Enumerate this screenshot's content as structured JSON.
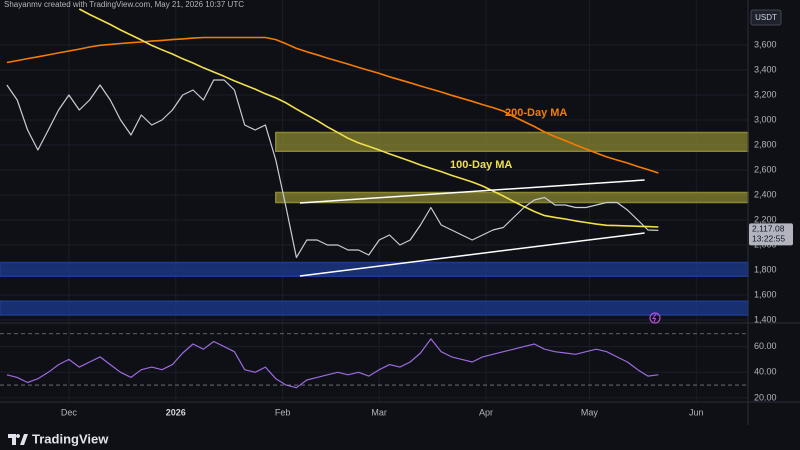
{
  "header": {
    "credit": "Shayanmv created with TradingView.com, May 21, 2026 10:37 UTC",
    "currency": "USDT"
  },
  "footer": {
    "logo": "TradingView"
  },
  "chart_data": [
    {
      "type": "line",
      "x": [
        "2025-11-13",
        "2025-11-16",
        "2025-11-19",
        "2025-11-22",
        "2025-11-25",
        "2025-11-28",
        "2025-12-01",
        "2025-12-04",
        "2025-12-07",
        "2025-12-10",
        "2025-12-13",
        "2025-12-16",
        "2025-12-19",
        "2025-12-22",
        "2025-12-25",
        "2025-12-28",
        "2025-12-31",
        "2026-01-03",
        "2026-01-06",
        "2026-01-09",
        "2026-01-12",
        "2026-01-15",
        "2026-01-18",
        "2026-01-21",
        "2026-01-24",
        "2026-01-27",
        "2026-01-30",
        "2026-02-02",
        "2026-02-05",
        "2026-02-08",
        "2026-02-11",
        "2026-02-14",
        "2026-02-17",
        "2026-02-20",
        "2026-02-23",
        "2026-02-26",
        "2026-03-01",
        "2026-03-04",
        "2026-03-07",
        "2026-03-10",
        "2026-03-13",
        "2026-03-16",
        "2026-03-19",
        "2026-03-22",
        "2026-03-25",
        "2026-03-28",
        "2026-03-31",
        "2026-04-03",
        "2026-04-06",
        "2026-04-09",
        "2026-04-12",
        "2026-04-15",
        "2026-04-18",
        "2026-04-21",
        "2026-04-24",
        "2026-04-27",
        "2026-04-30",
        "2026-05-03",
        "2026-05-06",
        "2026-05-09",
        "2026-05-12",
        "2026-05-15",
        "2026-05-18",
        "2026-05-21"
      ],
      "series": [
        {
          "color": "#c8ccd6",
          "values": [
            3280,
            3160,
            2920,
            2760,
            2920,
            3080,
            3200,
            3080,
            3160,
            3280,
            3160,
            3000,
            2880,
            3040,
            2960,
            3000,
            3080,
            3200,
            3240,
            3160,
            3320,
            3320,
            3240,
            2960,
            2920,
            2960,
            2680,
            2300,
            1900,
            2040,
            2040,
            2000,
            2000,
            1960,
            1960,
            1920,
            2040,
            2080,
            2000,
            2040,
            2160,
            2300,
            2160,
            2120,
            2080,
            2040,
            2080,
            2120,
            2140,
            2220,
            2300,
            2360,
            2380,
            2320,
            2320,
            2300,
            2300,
            2320,
            2340,
            2340,
            2280,
            2200,
            2120,
            2117.08
          ]
        },
        {
          "name": "200-Day MA",
          "color": "#f57c00",
          "values": [
            3460,
            3475,
            3491,
            3506,
            3521,
            3537,
            3552,
            3567,
            3584,
            3598,
            3605,
            3612,
            3618,
            3624,
            3631,
            3637,
            3643,
            3649,
            3655,
            3660,
            3660,
            3660,
            3660,
            3660,
            3660,
            3660,
            3643,
            3610,
            3573,
            3546,
            3522,
            3495,
            3471,
            3447,
            3421,
            3397,
            3373,
            3346,
            3322,
            3298,
            3272,
            3248,
            3224,
            3198,
            3174,
            3150,
            3123,
            3099,
            3072,
            3028,
            2988,
            2948,
            2904,
            2867,
            2835,
            2800,
            2768,
            2736,
            2705,
            2680,
            2656,
            2628,
            2603,
            2576
          ]
        },
        {
          "name": "100-Day MA",
          "color": "#f0e04a",
          "values": [
            null,
            null,
            null,
            null,
            null,
            null,
            null,
            3888,
            3844,
            3804,
            3764,
            3720,
            3680,
            3640,
            3597,
            3562,
            3528,
            3490,
            3456,
            3418,
            3384,
            3350,
            3313,
            3280,
            3247,
            3210,
            3177,
            3137,
            3087,
            3041,
            2995,
            2945,
            2899,
            2854,
            2817,
            2789,
            2760,
            2729,
            2700,
            2671,
            2640,
            2613,
            2587,
            2557,
            2531,
            2504,
            2472,
            2432,
            2392,
            2348,
            2308,
            2268,
            2235,
            2221,
            2208,
            2193,
            2180,
            2167,
            2158,
            2155,
            2153,
            2150,
            2147,
            2144
          ]
        }
      ],
      "zones": [
        {
          "high": 2900,
          "low": 2750,
          "from": "2026-01-30",
          "color": "#8a8530"
        },
        {
          "high": 2420,
          "low": 2340,
          "from": "2026-01-30",
          "color": "#8a8530"
        },
        {
          "high": 1860,
          "low": 1750,
          "from": "2025-11-11",
          "color": "#1c3b91"
        },
        {
          "high": 1550,
          "low": 1440,
          "from": "2025-11-11",
          "color": "#1c3b91"
        }
      ],
      "trendlines": [
        {
          "x": [
            "2026-02-06",
            "2026-05-17"
          ],
          "values": [
            2336,
            2520
          ],
          "color": "#ffffff"
        },
        {
          "x": [
            "2026-02-06",
            "2026-05-17"
          ],
          "values": [
            1752,
            2096
          ],
          "color": "#ffffff"
        }
      ],
      "price_label": {
        "value": 2117.08,
        "label": "2,117.08",
        "countdown": "13:22:55"
      },
      "xlim": [
        "2025-11-11",
        "2026-06-16"
      ],
      "xticks": [
        {
          "value": "2025-12-01",
          "label": "Dec"
        },
        {
          "value": "2026-01-01",
          "label": "2026"
        },
        {
          "value": "2026-02-01",
          "label": "Feb"
        },
        {
          "value": "2026-03-01",
          "label": "Mar"
        },
        {
          "value": "2026-04-01",
          "label": "Apr"
        },
        {
          "value": "2026-05-01",
          "label": "May"
        },
        {
          "value": "2026-06-01",
          "label": "Jun"
        }
      ],
      "ylim": [
        1384,
        3960
      ],
      "yticks": [
        {
          "value": 1400,
          "label": "1,400"
        },
        {
          "value": 1600,
          "label": "1,600"
        },
        {
          "value": 1800,
          "label": "1,800"
        },
        {
          "value": 2000,
          "label": "2,000"
        },
        {
          "value": 2200,
          "label": "2,200"
        },
        {
          "value": 2400,
          "label": "2,400"
        },
        {
          "value": 2600,
          "label": "2,600"
        },
        {
          "value": 2800,
          "label": "2,800"
        },
        {
          "value": 3000,
          "label": "3,000"
        },
        {
          "value": 3200,
          "label": "3,200"
        },
        {
          "value": 3400,
          "label": "3,400"
        },
        {
          "value": 3600,
          "label": "3,600"
        }
      ],
      "grid": true
    },
    {
      "type": "line",
      "color": "#9c6ade",
      "values": [
        38,
        36,
        32,
        35,
        40,
        46,
        50,
        44,
        48,
        52,
        46,
        40,
        36,
        42,
        44,
        42,
        46,
        55,
        62,
        58,
        64,
        60,
        56,
        42,
        40,
        44,
        35,
        30,
        28,
        34,
        36,
        38,
        40,
        38,
        40,
        37,
        42,
        46,
        44,
        48,
        55,
        66,
        56,
        52,
        50,
        48,
        52,
        54,
        56,
        58,
        60,
        62,
        58,
        56,
        55,
        54,
        56,
        58,
        56,
        52,
        48,
        42,
        37,
        38
      ],
      "levels": [
        70,
        30
      ],
      "ylim": [
        17.6,
        77.6
      ],
      "yticks": [
        {
          "value": 20,
          "label": "20.00"
        },
        {
          "value": 40,
          "label": "40.00"
        },
        {
          "value": 60,
          "label": "60.00"
        }
      ]
    }
  ]
}
